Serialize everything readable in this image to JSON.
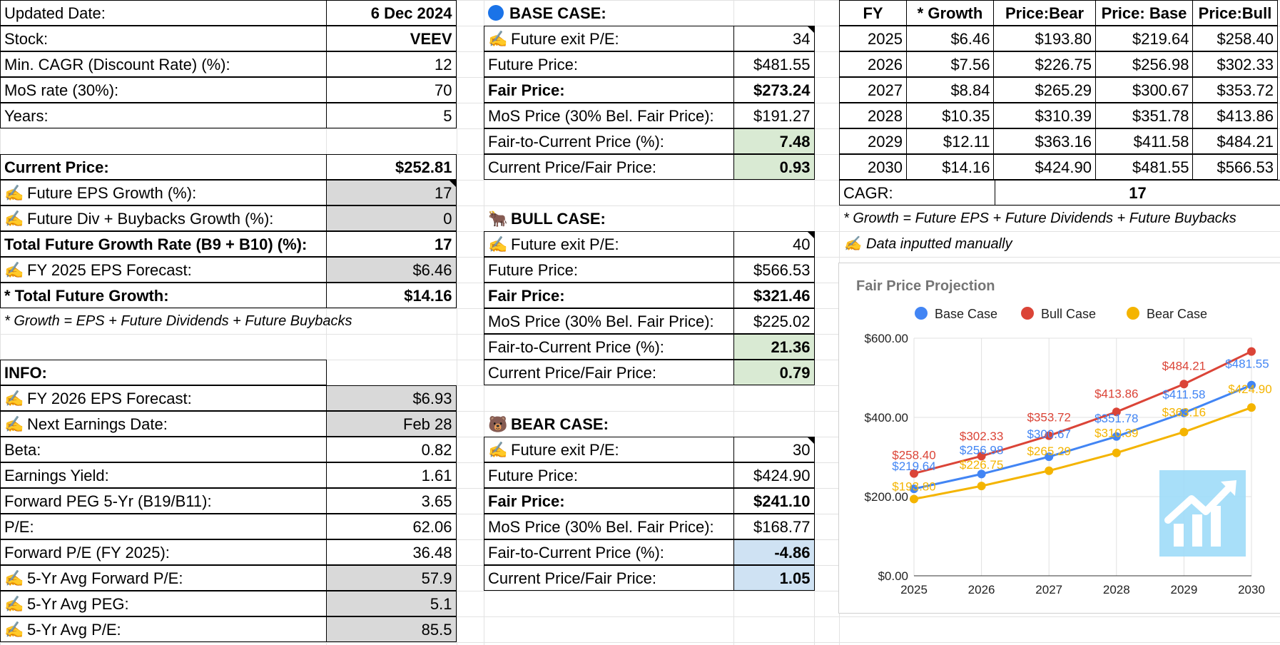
{
  "left": {
    "rows": [
      {
        "label": "Updated Date:",
        "value": "6 Dec 2024",
        "bold_value": true
      },
      {
        "label": "Stock:",
        "value": "VEEV",
        "bold_value": true
      },
      {
        "label": "Min. CAGR (Discount Rate) (%):",
        "value": "12"
      },
      {
        "label": "MoS rate (30%):",
        "value": "70"
      },
      {
        "label": "Years:",
        "value": "5"
      }
    ],
    "current_price_label": "Current Price:",
    "current_price": "$252.81",
    "eps_growth_label": "Future EPS Growth (%):",
    "eps_growth": "17",
    "div_growth_label": "Future Div + Buybacks Growth (%):",
    "div_growth": "0",
    "total_growth_rate_label": "Total Future Growth Rate (B9 + B10) (%):",
    "total_growth_rate": "17",
    "eps_forecast_label": "FY 2025 EPS Forecast:",
    "eps_forecast": "$6.46",
    "total_growth_label": "* Total Future Growth:",
    "total_growth": "$14.16",
    "growth_note": "* Growth = EPS + Future Dividends + Future Buybacks",
    "info_title": "INFO:",
    "info_rows": [
      {
        "label": "FY 2026 EPS Forecast:",
        "value": "$6.93",
        "manual": true
      },
      {
        "label": "Next Earnings Date:",
        "value": "Feb 28",
        "manual": true
      },
      {
        "label": "Beta:",
        "value": "0.82"
      },
      {
        "label": "Earnings Yield:",
        "value": "1.61"
      },
      {
        "label": "Forward PEG 5-Yr (B19/B11):",
        "value": "3.65"
      },
      {
        "label": "P/E:",
        "value": "62.06"
      },
      {
        "label": "Forward P/E (FY 2025):",
        "value": "36.48"
      },
      {
        "label": "5-Yr Avg Forward P/E:",
        "value": "57.9",
        "manual": true
      },
      {
        "label": "5-Yr Avg PEG:",
        "value": "5.1",
        "manual": true
      },
      {
        "label": "5-Yr Avg P/E:",
        "value": "85.5",
        "manual": true
      }
    ]
  },
  "cases": {
    "base": {
      "title": "BASE CASE:",
      "icon": "blue-circle-icon",
      "rows": [
        {
          "label": "Future exit P/E:",
          "value": "34"
        },
        {
          "label": "Future Price:",
          "value": "$481.55"
        },
        {
          "label": "Fair Price:",
          "value": "$273.24"
        },
        {
          "label": "MoS Price (30% Bel. Fair Price):",
          "value": "$191.27"
        },
        {
          "label": "Fair-to-Current Price (%):",
          "value": "7.48"
        },
        {
          "label": "Current Price/Fair Price:",
          "value": "0.93"
        }
      ]
    },
    "bull": {
      "title": "BULL CASE:",
      "icon": "bull-icon",
      "rows": [
        {
          "label": "Future exit P/E:",
          "value": "40"
        },
        {
          "label": "Future Price:",
          "value": "$566.53"
        },
        {
          "label": "Fair Price:",
          "value": "$321.46"
        },
        {
          "label": "MoS Price (30% Bel. Fair Price):",
          "value": "$225.02"
        },
        {
          "label": "Fair-to-Current Price (%):",
          "value": "21.36"
        },
        {
          "label": "Current Price/Fair Price:",
          "value": "0.79"
        }
      ]
    },
    "bear": {
      "title": "BEAR CASE:",
      "icon": "bear-icon",
      "rows": [
        {
          "label": "Future exit P/E:",
          "value": "30"
        },
        {
          "label": "Future Price:",
          "value": "$424.90"
        },
        {
          "label": "Fair Price:",
          "value": "$241.10"
        },
        {
          "label": "MoS Price (30% Bel. Fair Price):",
          "value": "$168.77"
        },
        {
          "label": "Fair-to-Current Price (%):",
          "value": "-4.86"
        },
        {
          "label": "Current Price/Fair Price:",
          "value": "1.05"
        }
      ]
    }
  },
  "projection_table": {
    "headers": [
      "FY",
      "* Growth",
      "Price:Bear",
      "Price: Base",
      "Price:Bull"
    ],
    "rows": [
      [
        "2025",
        "$6.46",
        "$193.80",
        "$219.64",
        "$258.40"
      ],
      [
        "2026",
        "$7.56",
        "$226.75",
        "$256.98",
        "$302.33"
      ],
      [
        "2027",
        "$8.84",
        "$265.29",
        "$300.67",
        "$353.72"
      ],
      [
        "2028",
        "$10.35",
        "$310.39",
        "$351.78",
        "$413.86"
      ],
      [
        "2029",
        "$12.11",
        "$363.16",
        "$411.58",
        "$484.21"
      ],
      [
        "2030",
        "$14.16",
        "$424.90",
        "$481.55",
        "$566.53"
      ]
    ],
    "cagr_label": "CAGR:",
    "cagr_value": "17",
    "note1": "* Growth = Future EPS + Future Dividends + Future Buybacks",
    "note2": "Data inputted manually"
  },
  "chart_data": {
    "type": "line",
    "title": "Fair Price Projection",
    "x": [
      2025,
      2026,
      2027,
      2028,
      2029,
      2030
    ],
    "series": [
      {
        "name": "Base Case",
        "color": "#4285f4",
        "values": [
          219.64,
          256.98,
          300.67,
          351.78,
          411.58,
          481.55
        ],
        "labels": [
          "$219.64",
          "$256.98",
          "$300.67",
          "$351.78",
          "$411.58",
          "$481.55"
        ]
      },
      {
        "name": "Bull Case",
        "color": "#db4437",
        "values": [
          258.4,
          302.33,
          353.72,
          413.86,
          484.21,
          566.53
        ],
        "labels": [
          "$258.40",
          "$302.33",
          "$353.72",
          "$413.86",
          "$484.21",
          ""
        ]
      },
      {
        "name": "Bear Case",
        "color": "#f4b400",
        "values": [
          193.8,
          226.75,
          265.29,
          310.39,
          363.16,
          424.9
        ],
        "labels": [
          "$193.80",
          "$226.75",
          "$265.29",
          "$310.39",
          "$363.16",
          "$424.90"
        ]
      }
    ],
    "ylim": [
      0,
      600
    ],
    "yticks": [
      "$0.00",
      "$200.00",
      "$400.00",
      "$600.00"
    ],
    "ytick_values": [
      0,
      200,
      400,
      600
    ],
    "legend_position": "top",
    "grid": true
  }
}
